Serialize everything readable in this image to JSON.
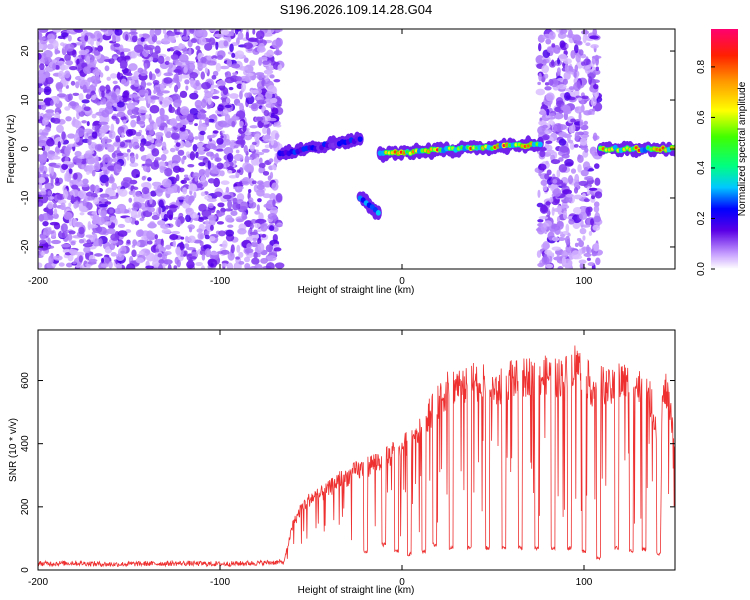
{
  "figure_title": "S196.2026.109.14.28.G04",
  "chart_data": [
    {
      "type": "heatmap",
      "title": "S196.2026.109.14.28.G04",
      "xlabel": "Height of straight line (km)",
      "ylabel": "Frequency (Hz)",
      "xlim": [
        -200,
        150
      ],
      "ylim": [
        -24.5,
        24.5
      ],
      "x_ticks": [
        -200,
        -100,
        0,
        100
      ],
      "y_ticks": [
        -20,
        -10,
        0,
        10,
        20
      ],
      "colorbar": {
        "label": "Normalized spectral amplitude",
        "range": [
          0.0,
          0.95
        ],
        "ticks": [
          0.0,
          0.2,
          0.4,
          0.6,
          0.8
        ],
        "tick_labels": [
          "0.0",
          "0.2",
          "0.4",
          "0.6",
          "0.8"
        ]
      },
      "noise_regions": [
        {
          "x_range": [
            -200,
            -67
          ],
          "y_range": [
            -24.5,
            24.5
          ],
          "amplitude": 0.1
        },
        {
          "x_range": [
            75,
            108
          ],
          "y_range": [
            -24.5,
            24.5
          ],
          "amplitude": 0.1
        }
      ],
      "signal_tracks": [
        {
          "x_range": [
            -67,
            -23
          ],
          "freq_start": -1,
          "freq_end": 2,
          "peak_amplitude": 0.4
        },
        {
          "x_range": [
            -23,
            -13
          ],
          "freq_start": -10,
          "freq_end": -13,
          "peak_amplitude": 0.55
        },
        {
          "x_range": [
            -12,
            76
          ],
          "freq_start": -1,
          "freq_end": 1,
          "peak_amplitude": 0.95
        },
        {
          "x_range": [
            109,
            150
          ],
          "freq_start": 0,
          "freq_end": 0,
          "peak_amplitude": 0.9
        }
      ]
    },
    {
      "type": "line",
      "title": "",
      "xlabel": "Height of straight line (km)",
      "ylabel": "SNR (10 * v/v)",
      "xlim": [
        -200,
        150
      ],
      "ylim": [
        0,
        760
      ],
      "x_ticks": [
        -200,
        -100,
        0,
        100
      ],
      "y_ticks": [
        0,
        200,
        400,
        600
      ],
      "series": [
        {
          "name": "SNR",
          "color": "#ee3030",
          "x": [
            -200,
            -180,
            -160,
            -140,
            -120,
            -100,
            -80,
            -65,
            -60,
            -55,
            -50,
            -45,
            -40,
            -35,
            -30,
            -25,
            -20,
            -15,
            -10,
            -5,
            0,
            5,
            10,
            15,
            20,
            25,
            30,
            35,
            40,
            45,
            50,
            55,
            60,
            65,
            70,
            75,
            80,
            85,
            90,
            95,
            100,
            105,
            110,
            115,
            120,
            125,
            130,
            135,
            140,
            145,
            150
          ],
          "values": [
            20,
            22,
            18,
            20,
            21,
            19,
            22,
            25,
            150,
            210,
            240,
            250,
            270,
            300,
            310,
            330,
            340,
            360,
            370,
            390,
            410,
            440,
            480,
            520,
            560,
            600,
            620,
            610,
            630,
            620,
            600,
            610,
            640,
            630,
            650,
            640,
            650,
            640,
            650,
            690,
            660,
            600,
            620,
            600,
            630,
            620,
            610,
            600,
            480,
            600,
            430
          ]
        }
      ],
      "dropouts": [
        {
          "x": -20,
          "value": 60
        },
        {
          "x": -10,
          "value": 80
        },
        {
          "x": -3,
          "value": 60
        },
        {
          "x": 4,
          "value": 50
        },
        {
          "x": 12,
          "value": 60
        },
        {
          "x": 18,
          "value": 80
        },
        {
          "x": 27,
          "value": 70
        },
        {
          "x": 37,
          "value": 70
        },
        {
          "x": 47,
          "value": 70
        },
        {
          "x": 56,
          "value": 70
        },
        {
          "x": 65,
          "value": 70
        },
        {
          "x": 74,
          "value": 70
        },
        {
          "x": 83,
          "value": 70
        },
        {
          "x": 92,
          "value": 70
        },
        {
          "x": 100,
          "value": 60
        },
        {
          "x": 108,
          "value": 35
        },
        {
          "x": 118,
          "value": 70
        },
        {
          "x": 126,
          "value": 60
        },
        {
          "x": 133,
          "value": 65
        },
        {
          "x": 141,
          "value": 50
        }
      ]
    }
  ]
}
